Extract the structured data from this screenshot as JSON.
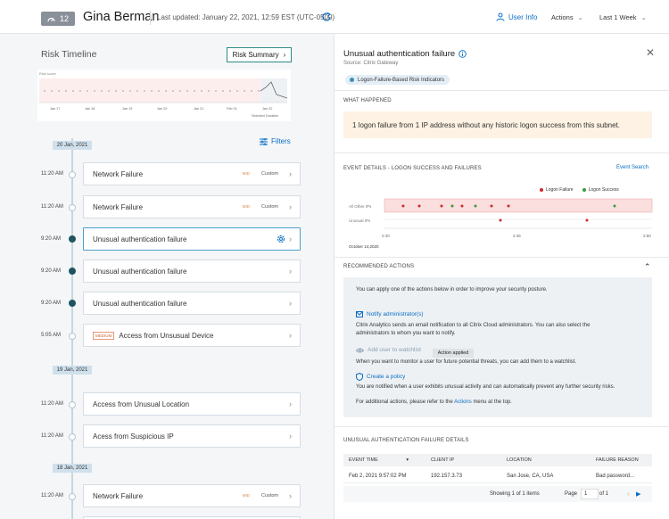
{
  "header": {
    "score": "12",
    "user_name": "Gina Berman",
    "last_updated": "Last updated: January 22, 2021, 12:59 EST (UTC-0500)",
    "user_info_label": "User Info",
    "actions_label": "Actions",
    "range_label": "Last 1 Week"
  },
  "timeline": {
    "title": "Risk Timeline",
    "risk_summary_label": "Risk Summary",
    "filters_label": "Filters",
    "chart": {
      "ylabel": "Risk score",
      "xticks": [
        "Jan 17",
        "Jan 18",
        "Jan 19",
        "Jan 20",
        "Jan 21",
        "Feb 01",
        "Jan 22"
      ],
      "selected_label": "Selected Duration"
    },
    "dates": [
      "20 Jan, 2021",
      "19 Jan, 2021",
      "18 Jan, 2021"
    ],
    "events": [
      {
        "time": "11:20 AM",
        "title": "Network Failure",
        "tag": "MID",
        "custom": "Custom"
      },
      {
        "time": "11:20 AM",
        "title": "Network Failure",
        "tag": "MID",
        "custom": "Custom"
      },
      {
        "time": "9:20 AM",
        "title": "Unusual authentication failure"
      },
      {
        "time": "9:20 AM",
        "title": "Unusual authentication failure"
      },
      {
        "time": "9:20 AM",
        "title": "Unusual authentication failure"
      },
      {
        "time": "5:05 AM",
        "title": "Access from Unsusual Device",
        "medium": "MEDIUM"
      },
      {
        "time": "11:20 AM",
        "title": "Access from Unusual Location"
      },
      {
        "time": "11:20 AM",
        "title": "Acess from Suspicious IP"
      },
      {
        "time": "11:20 AM",
        "title": "Network Failure",
        "tag": "MID",
        "custom": "Custom"
      }
    ]
  },
  "detail": {
    "title": "Unusual authentication failure",
    "source": "Source: Citrix Gateway",
    "indicator_chip": "Logon-Failure-Based Risk Indicators",
    "what_happened_h": "WHAT HAPPENED",
    "what_happened": "1 logon failure from 1 IP address without any historic logon success from this subnet.",
    "event_details_h": "EVENT DETAILS - LOGON SUCCESS AND FAILURES",
    "event_search": "Event Search",
    "legend_failure": "Logon Failure",
    "legend_success": "Logon Success",
    "rows": [
      "All Other IPs",
      "Unusual IPs"
    ],
    "xticks": [
      "2:40",
      "2:45",
      "2:50"
    ],
    "date_label": "October 14,2020",
    "colors": {
      "failure": "#cc2a2a",
      "success": "#3a9a3a",
      "band": "#fbdede"
    },
    "recommended_h": "RECOMMENDED ACTIONS",
    "rec_intro": "You can apply one of the actions below in order to improve your security posture.",
    "notify_label": "Notify administrator(s)",
    "notify_desc1": "Citrix Analytics sends an email notification to all Citrix Cloud administrators. You can also select the",
    "notify_desc2": "administrators to whom you want to notify.",
    "watchlist_label": "Add user to watchlist",
    "applied_label": "Action applied",
    "watchlist_desc": "When you want to monitor a user for future potential threats, you can add them to a watchlist.",
    "policy_label": "Create a policy",
    "policy_desc": "You are notified when a user exhibits unusual activity and can automatically prevent any further security risks.",
    "more_prefix": "For additional actions, please refer to the",
    "more_link": "Actions",
    "more_suffix": "menu at the top.",
    "table_h": "UNUSUAL AUTHENTICATION FAILURE DETAILS",
    "columns": [
      "EVENT TIME",
      "CLIENT IP",
      "LOCATION",
      "FAILURE REASON"
    ],
    "row": [
      "Feb 2, 2021 9:57:02 PM",
      "192.157.3.73",
      "San Jose, CA, USA",
      "Bad password..."
    ],
    "pager": {
      "showing": "Showing 1 of 1 items",
      "page_label": "Page",
      "page": "1",
      "of": "of 1"
    }
  }
}
